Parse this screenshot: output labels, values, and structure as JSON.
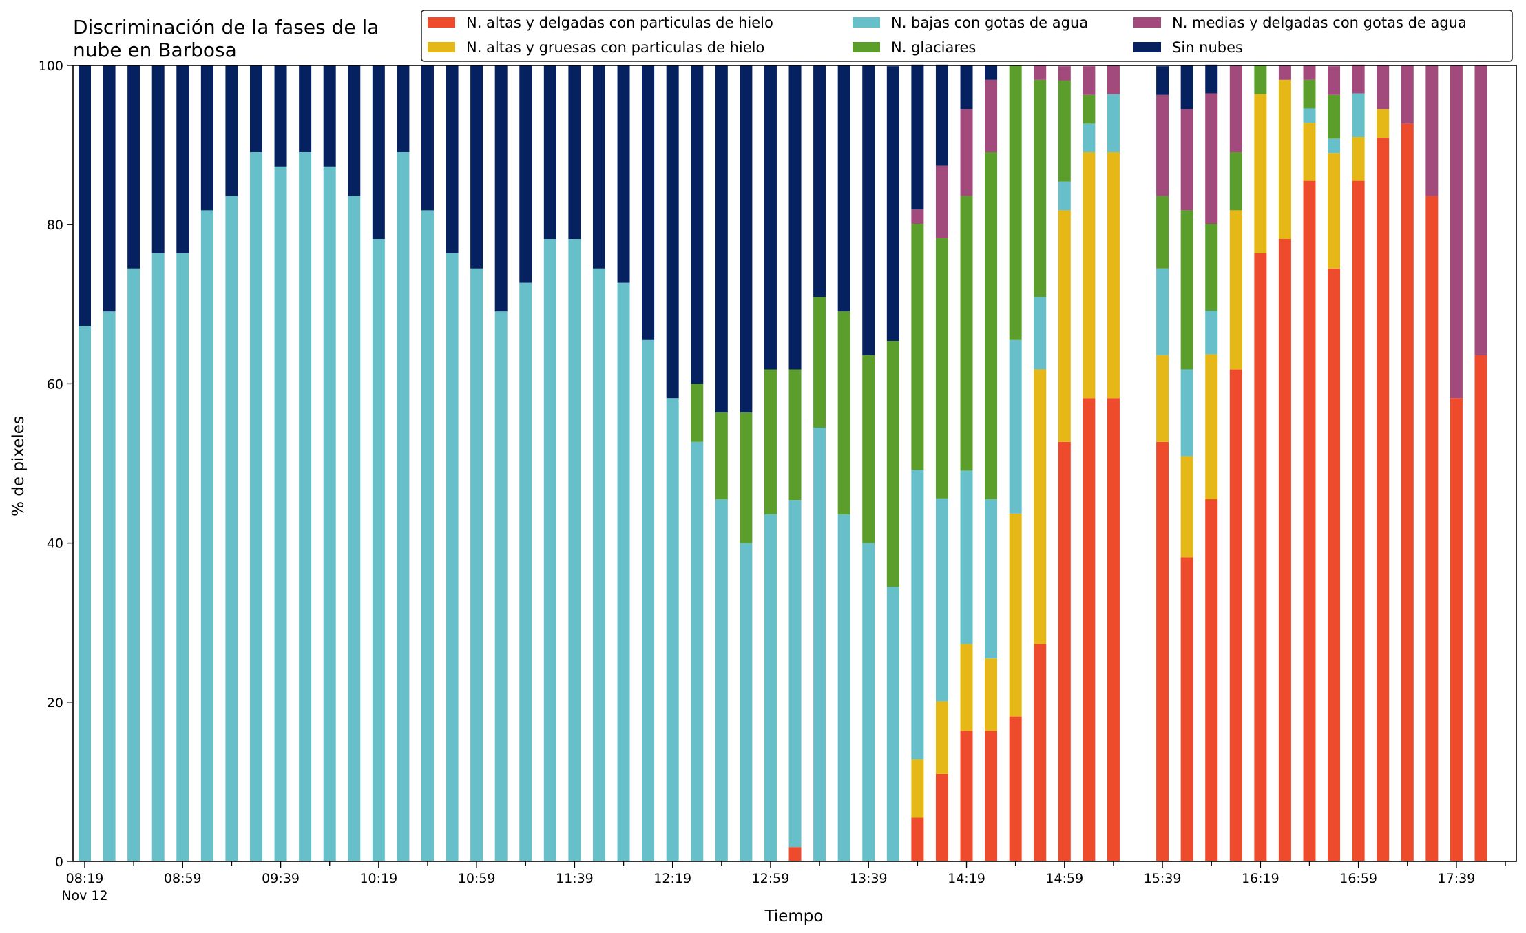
{
  "chart_data": {
    "type": "bar",
    "stacked": true,
    "title": "Discriminación de la fases de la\nnube en Barbosa",
    "xlabel": "Tiempo",
    "ylabel": "% de pixeles",
    "ylim": [
      0,
      100
    ],
    "yticks": [
      0,
      20,
      40,
      60,
      80,
      100
    ],
    "grid": false,
    "legend_position": "top-right",
    "x_label_extra": "Nov 12",
    "x_start": "08:19",
    "x_step_minutes": 10,
    "x_tick_labels": [
      "08:19",
      "08:59",
      "09:39",
      "10:19",
      "10:59",
      "11:39",
      "12:19",
      "12:59",
      "13:39",
      "14:19",
      "14:59",
      "15:39",
      "16:19",
      "16:59",
      "17:39"
    ],
    "categories": [
      "08:19",
      "08:29",
      "08:39",
      "08:49",
      "08:59",
      "09:09",
      "09:19",
      "09:29",
      "09:39",
      "09:49",
      "09:59",
      "10:09",
      "10:19",
      "10:29",
      "10:39",
      "10:49",
      "10:59",
      "11:09",
      "11:19",
      "11:29",
      "11:39",
      "11:49",
      "11:59",
      "12:09",
      "12:19",
      "12:29",
      "12:39",
      "12:49",
      "12:59",
      "13:09",
      "13:19",
      "13:29",
      "13:39",
      "13:49",
      "13:59",
      "14:09",
      "14:19",
      "14:29",
      "14:39",
      "14:49",
      "14:59",
      "15:09",
      "15:19",
      "15:29",
      "15:39",
      "15:49",
      "15:59",
      "16:09",
      "16:19",
      "16:29",
      "16:39",
      "16:49",
      "16:59",
      "17:09",
      "17:19",
      "17:29",
      "17:39",
      "17:49"
    ],
    "series": [
      {
        "name": "N. altas y delgadas con particulas de hielo",
        "color": "#ed4b2b",
        "values": [
          0,
          0,
          0,
          0,
          0,
          0,
          0,
          0,
          0,
          0,
          0,
          0,
          0,
          0,
          0,
          0,
          0,
          0,
          0,
          0,
          0,
          0,
          0,
          0,
          0,
          0,
          0,
          0,
          0,
          1.8,
          0,
          0,
          0,
          0,
          5.5,
          11,
          16.4,
          16.4,
          18.2,
          27.3,
          52.7,
          58.2,
          58.2,
          0,
          52.7,
          38.2,
          45.5,
          61.8,
          76.4,
          78.2,
          85.5,
          74.5,
          85.5,
          90.9,
          92.7,
          83.6,
          58.2,
          63.6
        ]
      },
      {
        "name": "N. altas y gruesas con particulas de hielo",
        "color": "#e6b817",
        "values": [
          0,
          0,
          0,
          0,
          0,
          0,
          0,
          0,
          0,
          0,
          0,
          0,
          0,
          0,
          0,
          0,
          0,
          0,
          0,
          0,
          0,
          0,
          0,
          0,
          0,
          0,
          0,
          0,
          0,
          0,
          0,
          0,
          0,
          0,
          7.3,
          9.1,
          10.9,
          9.1,
          25.5,
          34.5,
          29.1,
          30.9,
          30.9,
          0,
          10.9,
          12.7,
          18.2,
          20,
          20,
          20,
          7.3,
          14.5,
          5.5,
          3.6,
          0,
          0,
          0,
          0
        ]
      },
      {
        "name": "N. bajas con gotas de agua",
        "color": "#67bfca",
        "values": [
          67.3,
          69.1,
          74.5,
          76.4,
          76.4,
          81.8,
          83.6,
          89.1,
          87.3,
          89.1,
          87.3,
          83.6,
          78.2,
          89.1,
          81.8,
          76.4,
          74.5,
          69.1,
          72.7,
          78.2,
          78.2,
          74.5,
          72.7,
          65.5,
          58.2,
          52.7,
          45.5,
          40,
          43.6,
          43.6,
          54.5,
          43.6,
          40,
          34.5,
          36.4,
          25.5,
          21.8,
          20,
          21.8,
          9.1,
          3.6,
          3.6,
          7.3,
          0,
          10.9,
          10.9,
          5.5,
          0,
          0,
          0,
          1.8,
          1.8,
          5.5,
          0,
          0,
          0,
          0,
          0
        ]
      },
      {
        "name": "N. glaciares",
        "color": "#5b9e2c",
        "values": [
          0,
          0,
          0,
          0,
          0,
          0,
          0,
          0,
          0,
          0,
          0,
          0,
          0,
          0,
          0,
          0,
          0,
          0,
          0,
          0,
          0,
          0,
          0,
          0,
          0,
          7.3,
          10.9,
          16.4,
          18.2,
          16.4,
          16.4,
          25.5,
          23.6,
          30.9,
          30.9,
          32.7,
          34.5,
          43.6,
          34.5,
          27.3,
          12.7,
          3.6,
          0,
          0,
          9.1,
          20,
          10.9,
          7.3,
          3.6,
          0,
          3.6,
          5.5,
          0,
          0,
          0,
          0,
          0,
          0
        ]
      },
      {
        "name": "N. medias y delgadas con gotas de agua",
        "color": "#a24a7c",
        "values": [
          0,
          0,
          0,
          0,
          0,
          0,
          0,
          0,
          0,
          0,
          0,
          0,
          0,
          0,
          0,
          0,
          0,
          0,
          0,
          0,
          0,
          0,
          0,
          0,
          0,
          0,
          0,
          0,
          0,
          0,
          0,
          0,
          0,
          0,
          1.8,
          9.1,
          10.9,
          9.1,
          0,
          1.8,
          1.8,
          3.6,
          3.6,
          0,
          12.7,
          12.7,
          16.4,
          10.9,
          0,
          1.8,
          1.8,
          3.6,
          3.6,
          5.5,
          7.3,
          16.4,
          41.8,
          36.4
        ]
      },
      {
        "name": "Sin nubes",
        "color": "#06215f",
        "values": [
          32.7,
          30.9,
          25.5,
          23.6,
          23.6,
          18.2,
          16.4,
          10.9,
          12.7,
          10.9,
          12.7,
          16.4,
          21.8,
          10.9,
          18.2,
          23.6,
          25.5,
          30.9,
          27.3,
          21.8,
          21.8,
          25.5,
          27.3,
          34.5,
          41.8,
          40,
          43.6,
          43.6,
          38.2,
          38.2,
          29.1,
          30.9,
          36.4,
          34.5,
          18.2,
          12.7,
          5.5,
          1.8,
          0,
          0,
          0,
          0,
          0,
          0,
          3.6,
          5.5,
          3.6,
          0,
          0,
          0,
          0,
          0,
          0,
          0,
          0,
          0,
          0,
          0
        ]
      }
    ]
  }
}
